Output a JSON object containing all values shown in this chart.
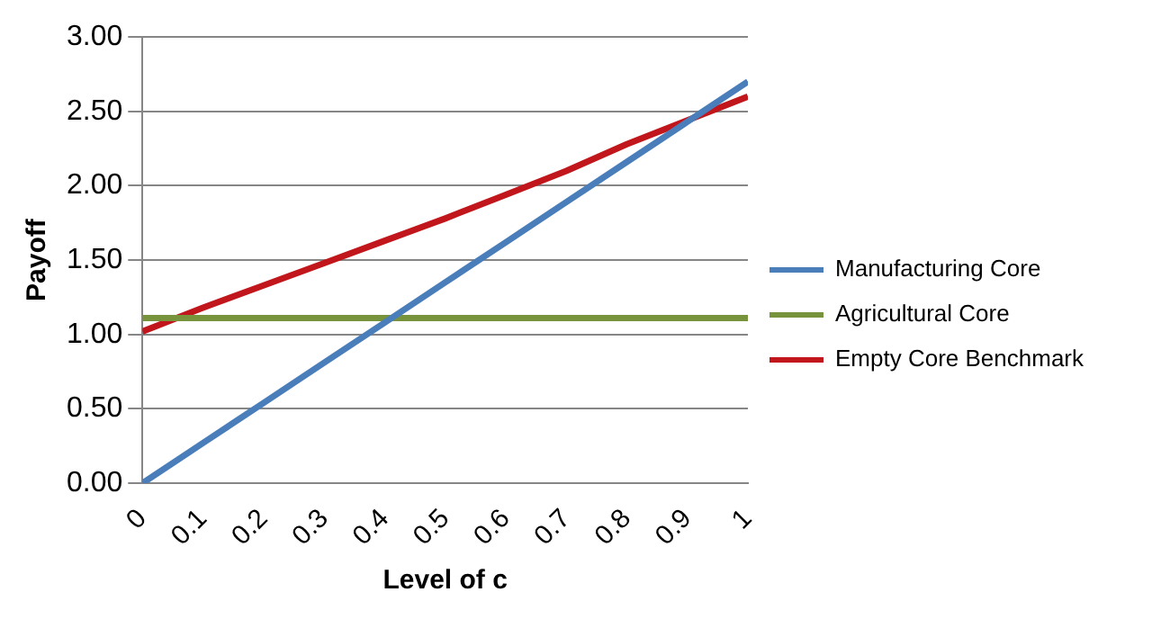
{
  "chart_data": {
    "type": "line",
    "xlabel": "Level of c",
    "ylabel": "Payoff",
    "x": [
      0,
      0.1,
      0.2,
      0.3,
      0.4,
      0.5,
      0.6,
      0.7,
      0.8,
      0.9,
      1
    ],
    "xlim": [
      0,
      1
    ],
    "xticks": [
      0,
      0.1,
      0.2,
      0.3,
      0.4,
      0.5,
      0.6,
      0.7,
      0.8,
      0.9,
      1
    ],
    "ylim": [
      0,
      3
    ],
    "yticks": [
      {
        "value": 0,
        "label": "0.00"
      },
      {
        "value": 0.5,
        "label": "0.50"
      },
      {
        "value": 1,
        "label": "1.00"
      },
      {
        "value": 1.5,
        "label": "1.50"
      },
      {
        "value": 2,
        "label": "2.00"
      },
      {
        "value": 2.5,
        "label": "2.50"
      },
      {
        "value": 3,
        "label": "3.00"
      }
    ],
    "series": [
      {
        "name": "Manufacturing Core",
        "color": "#4a7ebb",
        "values": [
          0,
          0.27,
          0.54,
          0.81,
          1.08,
          1.35,
          1.62,
          1.89,
          2.16,
          2.43,
          2.7
        ]
      },
      {
        "name": "Agricultural Core",
        "color": "#77933c",
        "values": [
          1.11,
          1.11,
          1.11,
          1.11,
          1.11,
          1.11,
          1.11,
          1.11,
          1.11,
          1.11,
          1.11
        ]
      },
      {
        "name": "Empty Core Benchmark",
        "color": "#c0161c",
        "values": [
          1.02,
          1.18,
          1.33,
          1.48,
          1.63,
          1.78,
          1.94,
          2.1,
          2.28,
          2.44,
          2.6
        ]
      }
    ],
    "grid": "y",
    "legend": "right",
    "marker": "none",
    "line_style": "solid"
  }
}
